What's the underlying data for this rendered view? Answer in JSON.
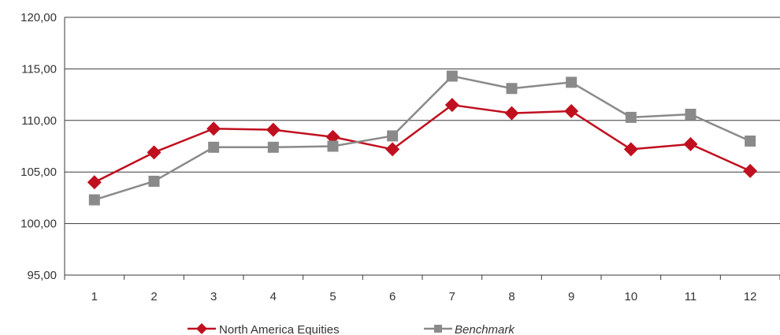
{
  "chart_data": {
    "type": "line",
    "categories": [
      "1",
      "2",
      "3",
      "4",
      "5",
      "6",
      "7",
      "8",
      "9",
      "10",
      "11",
      "12"
    ],
    "ylim": [
      95,
      120
    ],
    "yticks": [
      95,
      100,
      105,
      110,
      115,
      120
    ],
    "ytick_labels": [
      "95,00",
      "100,00",
      "105,00",
      "110,00",
      "115,00",
      "120,00"
    ],
    "grid": "horizontal",
    "legend_position": "bottom",
    "series": [
      {
        "name": "North America Equities",
        "marker": "diamond",
        "color": "#c0101f",
        "values": [
          104.0,
          106.9,
          109.2,
          109.1,
          108.4,
          107.2,
          111.5,
          110.7,
          110.9,
          107.2,
          107.7,
          105.1
        ]
      },
      {
        "name": "Benchmark",
        "marker": "square",
        "color": "#8a8a8a",
        "italic": true,
        "values": [
          102.3,
          104.1,
          107.4,
          107.4,
          107.5,
          108.5,
          114.3,
          113.1,
          113.7,
          110.3,
          110.6,
          108.0
        ]
      }
    ]
  }
}
